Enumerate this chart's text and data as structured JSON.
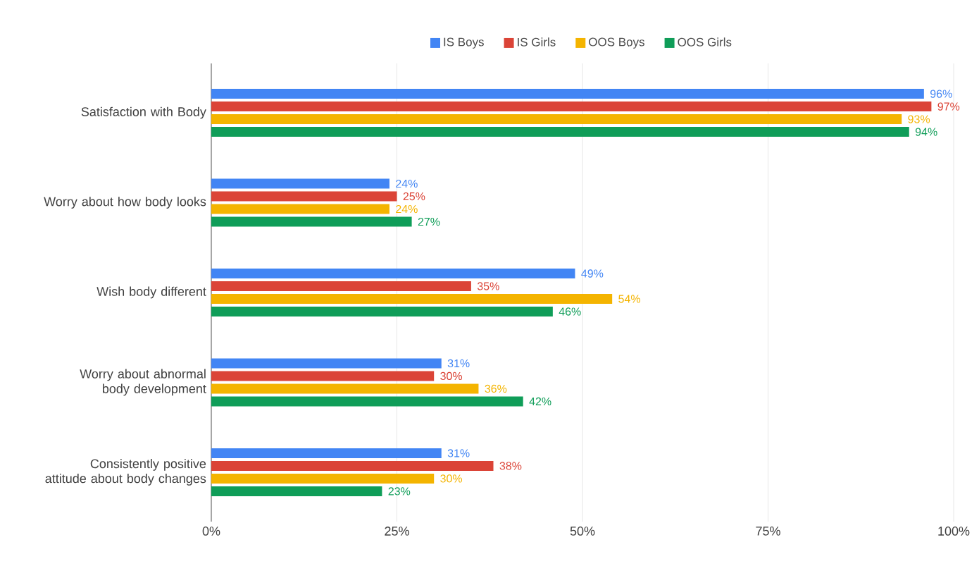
{
  "chart_data": {
    "type": "bar",
    "orientation": "horizontal",
    "categories": [
      "Satisfaction with Body",
      "Worry about how body looks",
      "Wish body different",
      "Worry about abnormal body development",
      "Consistently positive attitude about body changes"
    ],
    "series": [
      {
        "name": "IS Boys",
        "color": "#4285f4",
        "values": [
          96,
          24,
          49,
          31,
          31
        ],
        "value_labels": [
          "96%",
          "24%",
          "49%",
          "31%",
          "31%"
        ]
      },
      {
        "name": "IS Girls",
        "color": "#db4437",
        "values": [
          97,
          25,
          35,
          30,
          38
        ],
        "value_labels": [
          "97%",
          "25%",
          "35%",
          "30%",
          "38%"
        ]
      },
      {
        "name": "OOS Boys",
        "color": "#f4b400",
        "values": [
          93,
          24,
          54,
          36,
          30
        ],
        "value_labels": [
          "93%",
          "24%",
          "54%",
          "36%",
          "30%"
        ]
      },
      {
        "name": "OOS Girls",
        "color": "#0f9d58",
        "values": [
          94,
          27,
          46,
          42,
          23
        ],
        "value_labels": [
          "94%",
          "27%",
          "46%",
          "42%",
          "23%"
        ]
      }
    ],
    "xlim": [
      0,
      100
    ],
    "xticks": [
      {
        "value": 0,
        "label": "0%"
      },
      {
        "value": 25,
        "label": "25%"
      },
      {
        "value": 50,
        "label": "50%"
      },
      {
        "value": 75,
        "label": "75%"
      },
      {
        "value": 100,
        "label": "100%"
      }
    ],
    "grid": "x",
    "legend": "top"
  }
}
